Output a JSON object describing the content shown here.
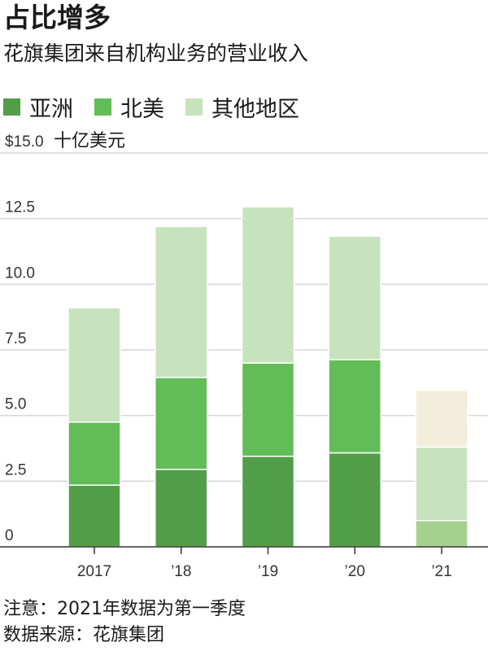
{
  "header": {
    "title": "占比增多",
    "subtitle": "花旗集团来自机构业务的营业收入"
  },
  "footer": {
    "note": "注意：2021年数据为第一季度",
    "source": "数据来源：花旗集团"
  },
  "chart_data": {
    "type": "bar",
    "stacked": true,
    "categories": [
      "2017",
      "’18",
      "’19",
      "’20",
      "’21"
    ],
    "series": [
      {
        "name": "亚洲",
        "color": "#529e48",
        "values": [
          2.35,
          2.95,
          3.45,
          3.58,
          null
        ]
      },
      {
        "name": "北美",
        "color": "#62bc57",
        "values": [
          2.4,
          3.5,
          3.55,
          3.55,
          null
        ]
      },
      {
        "name": "其他地区",
        "color": "#c6e3bd",
        "values": [
          4.35,
          5.75,
          5.95,
          4.7,
          2.8
        ]
      }
    ],
    "extra_segments": [
      {
        "category": "’21",
        "position": "bottom",
        "color": "#a4d28e",
        "value": 1.0
      },
      {
        "category": "’21",
        "position": "top",
        "color": "#f3eedb",
        "value": 2.15
      }
    ],
    "y_unit_label": "十亿美元",
    "ytick_labels": [
      "0",
      "2.5",
      "5.0",
      "7.5",
      "10.0",
      "12.5",
      "$15.0"
    ],
    "yticks": [
      0,
      2.5,
      5.0,
      7.5,
      10.0,
      12.5,
      15.0
    ],
    "ylim": [
      0,
      15
    ],
    "grid": true,
    "legend_position": "top-left"
  }
}
